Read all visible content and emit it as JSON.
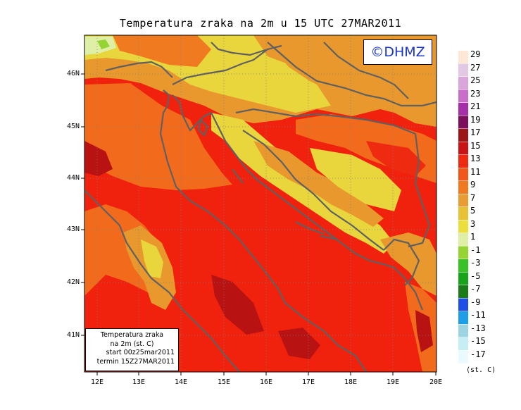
{
  "title": "Temperatura zraka na 2m u 15 UTC 27MAR2011",
  "logo": "©DHMZ",
  "info": {
    "line1": "Temperatura zraka",
    "line2": "na 2m (st. C)",
    "line3": "start 00z25mar2011",
    "line4": "termin 15Z27MAR2011"
  },
  "y_ticks": [
    "46N",
    "45N",
    "44N",
    "43N",
    "42N",
    "41N"
  ],
  "x_ticks": [
    "12E",
    "13E",
    "14E",
    "15E",
    "16E",
    "17E",
    "18E",
    "19E",
    "20E"
  ],
  "legend": {
    "unit": "(st. C)",
    "labels": [
      "29",
      "27",
      "25",
      "23",
      "21",
      "19",
      "17",
      "15",
      "13",
      "11",
      "9",
      "7",
      "5",
      "3",
      "1",
      "-1",
      "-3",
      "-5",
      "-7",
      "-9",
      "-11",
      "-13",
      "-15",
      "-17"
    ],
    "colors": [
      "#fde7d6",
      "#e2c8e2",
      "#d9a6d9",
      "#c86ec8",
      "#a62ea6",
      "#7d0e5c",
      "#9b1616",
      "#c81414",
      "#ee2a10",
      "#f2561a",
      "#f07a20",
      "#e89d34",
      "#e7c234",
      "#eadf3c",
      "#dff0a6",
      "#95d432",
      "#38c226",
      "#18a41a",
      "#1a7c18",
      "#1e4ee6",
      "#1e9ee6",
      "#9cd4e2",
      "#c6eef4",
      "#eafafe"
    ]
  },
  "colors": {
    "sea_hot": "#f0220e",
    "dark_red": "#b81212",
    "orange": "#f26a1c",
    "light_orange": "#e8982c",
    "yellow": "#e9d63c",
    "coast": "#606060",
    "logo_text": "#1a35c8"
  }
}
